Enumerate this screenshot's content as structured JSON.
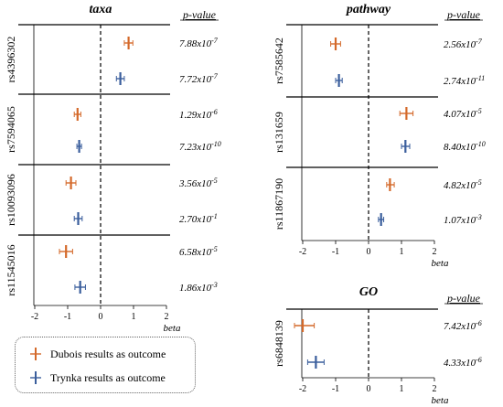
{
  "colors": {
    "dubois": "#d4692a",
    "trynka": "#3a5e9c"
  },
  "legend": {
    "dubois_label": "Dubois results as outcome",
    "trynka_label": "Trynka results as outcome"
  },
  "chart_data": [
    {
      "type": "forest",
      "title": "taxa",
      "pvalue_header": "p-value",
      "xlabel": "beta",
      "xlim": [
        -2,
        2
      ],
      "xticks": [
        "-2",
        "-1",
        "0",
        "1",
        "2"
      ],
      "reference_line": 0,
      "groups": [
        {
          "snp": "rs4396302",
          "rows": [
            {
              "series": "dubois",
              "beta": 0.85,
              "low": 0.72,
              "high": 0.98,
              "pvalue": "7.88x10",
              "exp": "-7"
            },
            {
              "series": "trynka",
              "beta": 0.6,
              "low": 0.48,
              "high": 0.72,
              "pvalue": "7.72x10",
              "exp": "-7"
            }
          ]
        },
        {
          "snp": "rs7594065",
          "rows": [
            {
              "series": "dubois",
              "beta": -0.7,
              "low": -0.8,
              "high": -0.6,
              "pvalue": "1.29x10",
              "exp": "-6"
            },
            {
              "series": "trynka",
              "beta": -0.65,
              "low": -0.72,
              "high": -0.58,
              "pvalue": "7.23x10",
              "exp": "-10"
            }
          ]
        },
        {
          "snp": "rs10093096",
          "rows": [
            {
              "series": "dubois",
              "beta": -0.9,
              "low": -1.05,
              "high": -0.75,
              "pvalue": "3.56x10",
              "exp": "-5"
            },
            {
              "series": "trynka",
              "beta": -0.68,
              "low": -0.8,
              "high": -0.56,
              "pvalue": "2.70x10",
              "exp": "-1"
            }
          ]
        },
        {
          "snp": "rs11545016",
          "rows": [
            {
              "series": "dubois",
              "beta": -1.05,
              "low": -1.25,
              "high": -0.85,
              "pvalue": "6.58x10",
              "exp": "-5"
            },
            {
              "series": "trynka",
              "beta": -0.62,
              "low": -0.78,
              "high": -0.46,
              "pvalue": "1.86x10",
              "exp": "-3"
            }
          ]
        }
      ]
    },
    {
      "type": "forest",
      "title": "pathway",
      "pvalue_header": "p-value",
      "xlabel": "beta",
      "xlim": [
        -2,
        2
      ],
      "xticks": [
        "-2",
        "-1",
        "0",
        "1",
        "2"
      ],
      "reference_line": 0,
      "groups": [
        {
          "snp": "rs7585642",
          "rows": [
            {
              "series": "dubois",
              "beta": -1.0,
              "low": -1.15,
              "high": -0.85,
              "pvalue": "2.56x10",
              "exp": "-7"
            },
            {
              "series": "trynka",
              "beta": -0.9,
              "low": -1.0,
              "high": -0.8,
              "pvalue": "2.74x10",
              "exp": "-11"
            }
          ]
        },
        {
          "snp": "rs131659",
          "rows": [
            {
              "series": "dubois",
              "beta": 1.15,
              "low": 0.95,
              "high": 1.35,
              "pvalue": "4.07x10",
              "exp": "-5"
            },
            {
              "series": "trynka",
              "beta": 1.12,
              "low": 1.0,
              "high": 1.25,
              "pvalue": "8.40x10",
              "exp": "-10"
            }
          ]
        },
        {
          "snp": "rs11867190",
          "rows": [
            {
              "series": "dubois",
              "beta": 0.65,
              "low": 0.55,
              "high": 0.78,
              "pvalue": "4.82x10",
              "exp": "-5"
            },
            {
              "series": "trynka",
              "beta": 0.38,
              "low": 0.3,
              "high": 0.46,
              "pvalue": "1.07x10",
              "exp": "-3"
            }
          ]
        }
      ]
    },
    {
      "type": "forest",
      "title": "GO",
      "pvalue_header": "p-value",
      "xlabel": "beta",
      "xlim": [
        -2,
        2
      ],
      "xticks": [
        "-2",
        "-1",
        "0",
        "1",
        "2"
      ],
      "reference_line": 0,
      "groups": [
        {
          "snp": "rs6848139",
          "rows": [
            {
              "series": "dubois",
              "beta": -2.0,
              "low": -2.25,
              "high": -1.65,
              "pvalue": "7.42x10",
              "exp": "-6"
            },
            {
              "series": "trynka",
              "beta": -1.6,
              "low": -1.85,
              "high": -1.35,
              "pvalue": "4.33x10",
              "exp": "-6"
            }
          ]
        }
      ]
    }
  ]
}
